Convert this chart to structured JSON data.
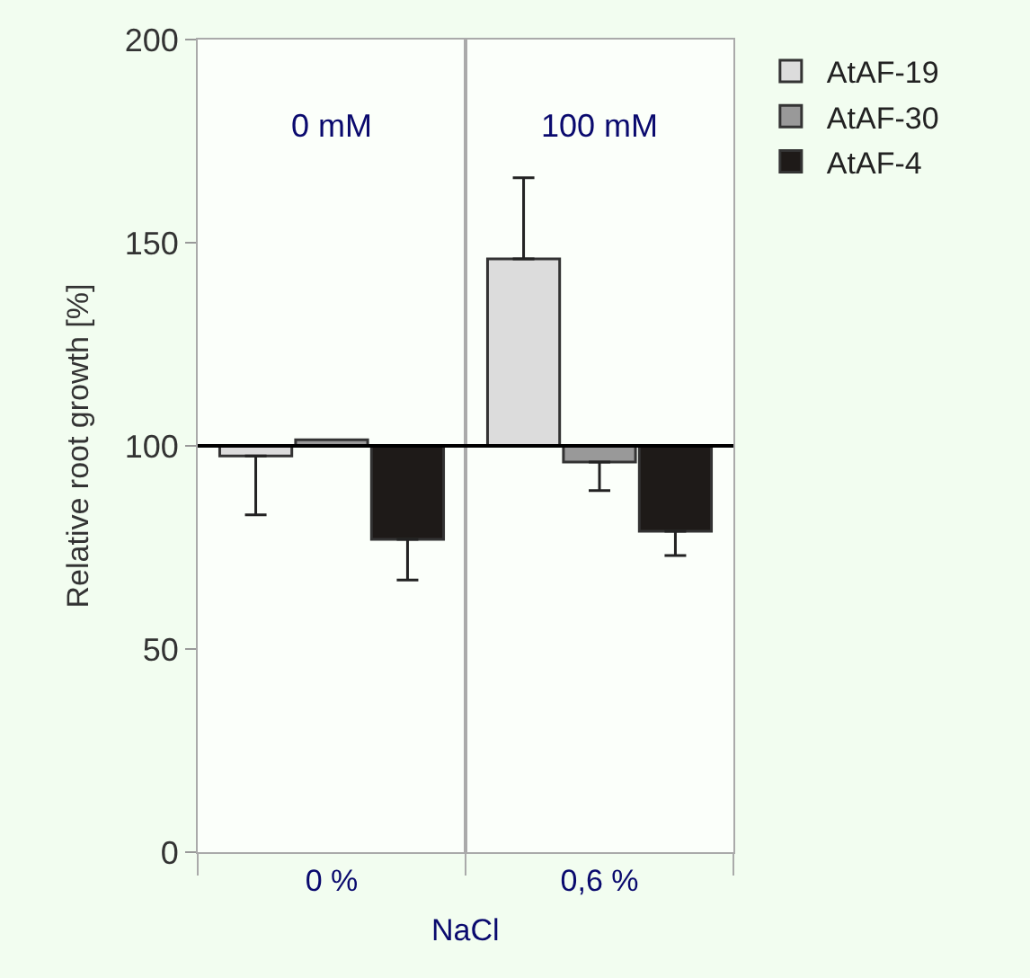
{
  "chart_data": [
    {
      "type": "bar",
      "title": "0 mM",
      "ylabel": "Relative root growth [%]",
      "categories": [
        "0 %"
      ],
      "series": [
        {
          "name": "AtAF-19",
          "color": "#dcdcdc",
          "values": [
            -2.5
          ],
          "base": [
            100
          ],
          "errors": [
            [
              83,
              97.5
            ]
          ]
        },
        {
          "name": "AtAF-30",
          "color": "#999999",
          "values": [
            1.5
          ],
          "base": [
            100
          ]
        },
        {
          "name": "AtAF-4",
          "color": "#1e1a18",
          "values": [
            -23
          ],
          "base": [
            100
          ],
          "errors": [
            [
              67,
              77
            ]
          ]
        }
      ],
      "ref_lines": [
        {
          "axis": "y",
          "value": 100,
          "color": "#000000"
        }
      ],
      "ylim": [
        0,
        200
      ],
      "yticks": [
        0,
        50,
        100,
        150,
        200
      ],
      "legend": "right"
    },
    {
      "type": "bar",
      "title": "100 mM",
      "xlabel": "NaCl",
      "categories": [
        "0,6 %"
      ],
      "series": [
        {
          "color": "#dcdcdc",
          "values": [
            46
          ],
          "base": [
            100
          ],
          "errors": [
            [
              146,
              166
            ]
          ]
        },
        {
          "color": "#999999",
          "values": [
            -4
          ],
          "base": [
            100
          ],
          "errors": [
            [
              89,
              96
            ]
          ]
        },
        {
          "color": "#1e1a18",
          "values": [
            -21
          ],
          "base": [
            100
          ],
          "errors": [
            [
              73,
              79
            ]
          ]
        }
      ],
      "ref_lines": [
        {
          "axis": "y",
          "value": 100,
          "color": "#000000"
        }
      ],
      "ylim": [
        0,
        200
      ],
      "yticks": [
        0,
        50,
        100,
        150,
        200
      ],
      "tick_labels": "x"
    }
  ]
}
